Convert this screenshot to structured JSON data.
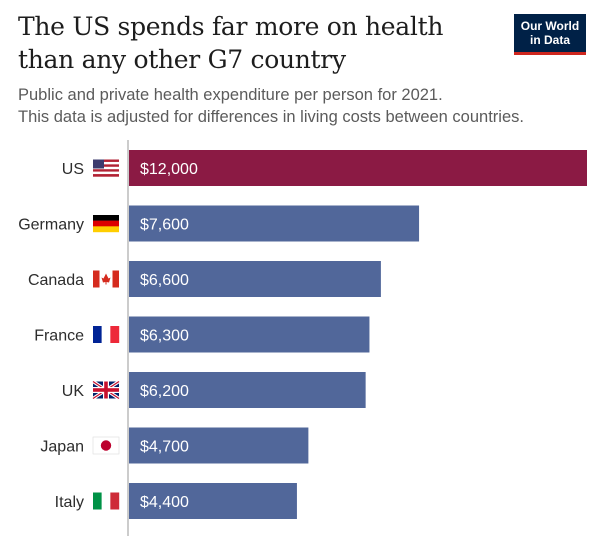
{
  "header": {
    "title_line1": "The US spends far more on health",
    "title_line2": "than any other G7 country",
    "subtitle_line1": "Public and private health expenditure per person for 2021.",
    "subtitle_line2": "This data is adjusted for differences in living costs between countries."
  },
  "logo": {
    "line1": "Our World",
    "line2": "in Data"
  },
  "colors": {
    "highlight": "#8b1a44",
    "bar": "#51679a",
    "axis": "#999999"
  },
  "chart_data": {
    "type": "bar",
    "orientation": "horizontal",
    "title": "The US spends far more on health than any other G7 country",
    "categories": [
      "US",
      "Germany",
      "Canada",
      "France",
      "UK",
      "Japan",
      "Italy"
    ],
    "values": [
      12000,
      7600,
      6600,
      6300,
      6200,
      4700,
      4400
    ],
    "value_labels": [
      "$12,000",
      "$7,600",
      "$6,600",
      "$6,300",
      "$6,200",
      "$4,700",
      "$4,400"
    ],
    "highlighted": "US",
    "flag_icons": [
      "us-flag-icon",
      "germany-flag-icon",
      "canada-flag-icon",
      "france-flag-icon",
      "uk-flag-icon",
      "japan-flag-icon",
      "italy-flag-icon"
    ],
    "xlim": [
      0,
      12000
    ],
    "grid": false,
    "legend": "none"
  }
}
